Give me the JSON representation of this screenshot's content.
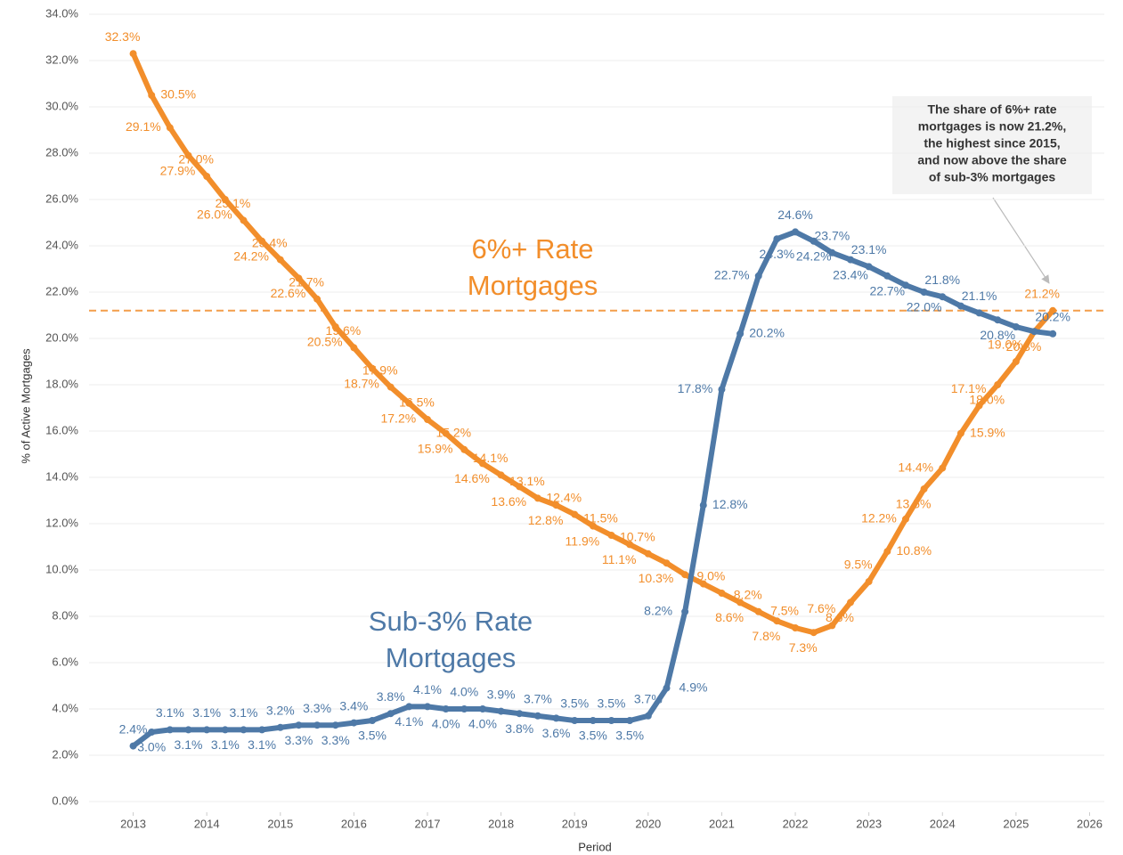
{
  "chart_data": {
    "type": "line",
    "y_label": "% of Active Mortgages",
    "x_label": "Period",
    "x": [
      2013,
      2013.25,
      2013.5,
      2013.75,
      2014,
      2014.25,
      2014.5,
      2014.75,
      2015,
      2015.25,
      2015.5,
      2015.75,
      2016,
      2016.25,
      2016.5,
      2016.75,
      2017,
      2017.25,
      2017.5,
      2017.75,
      2018,
      2018.25,
      2018.5,
      2018.75,
      2019,
      2019.25,
      2019.5,
      2019.75,
      2020,
      2020.25,
      2020.5,
      2020.75,
      2021,
      2021.25,
      2021.5,
      2021.75,
      2022,
      2022.25,
      2022.5,
      2022.75,
      2023,
      2023.25,
      2023.5,
      2023.75,
      2024,
      2024.25,
      2024.5,
      2024.75,
      2025,
      2025.25,
      2025.5
    ],
    "series": [
      {
        "name": "6%+ Rate Mortgages",
        "lines": [
          "6%+ Rate",
          "Mortgages"
        ],
        "color": "#f28e2b",
        "values": [
          32.3,
          30.5,
          29.1,
          27.9,
          27.0,
          26.0,
          25.1,
          24.2,
          23.4,
          22.6,
          21.7,
          20.5,
          19.6,
          18.7,
          17.9,
          17.2,
          16.5,
          15.9,
          15.2,
          14.6,
          14.1,
          13.6,
          13.1,
          12.8,
          12.4,
          11.9,
          11.5,
          11.1,
          10.7,
          10.3,
          9.8,
          9.4,
          9.0,
          8.6,
          8.2,
          7.8,
          7.5,
          7.3,
          7.6,
          8.6,
          9.5,
          10.8,
          12.2,
          13.5,
          14.4,
          15.9,
          17.1,
          18.0,
          19.0,
          20.3,
          21.2
        ],
        "value_labels": [
          "32.3%",
          "30.5%",
          "29.1%",
          "27.9%",
          "27.0%",
          "26.0%",
          "25.1%",
          "24.2%",
          "23.4%",
          "22.6%",
          "21.7%",
          "20.5%",
          "19.6%",
          "18.7%",
          "17.9%",
          "17.2%",
          "16.5%",
          "15.9%",
          "15.2%",
          "14.6%",
          "14.1%",
          "13.6%",
          "13.1%",
          "12.8%",
          "12.4%",
          "11.9%",
          "11.5%",
          "11.1%",
          "10.7%",
          "10.3%",
          null,
          null,
          "9.0%",
          "8.6%",
          "8.2%",
          "7.8%",
          "7.5%",
          "7.3%",
          "7.6%",
          "8.6%",
          "9.5%",
          "10.8%",
          "12.2%",
          "13.5%",
          "14.4%",
          "15.9%",
          "17.1%",
          "18.0%",
          "19.0%",
          "20.3%",
          "21.2%"
        ]
      },
      {
        "name": "Sub-3% Rate Mortgages",
        "lines": [
          "Sub-3% Rate",
          "Mortgages"
        ],
        "color": "#4e79a7",
        "values": [
          2.4,
          3.0,
          3.1,
          3.1,
          3.1,
          3.1,
          3.1,
          3.1,
          3.2,
          3.3,
          3.3,
          3.3,
          3.4,
          3.5,
          3.8,
          4.1,
          4.1,
          4.0,
          4.0,
          4.0,
          3.9,
          3.8,
          3.7,
          3.6,
          3.5,
          3.5,
          3.5,
          3.5,
          3.7,
          4.9,
          8.2,
          12.8,
          17.8,
          20.2,
          22.7,
          24.3,
          24.6,
          24.2,
          23.7,
          23.4,
          23.1,
          22.7,
          22.3,
          22.0,
          21.8,
          21.4,
          21.1,
          20.8,
          20.5,
          20.3,
          20.2
        ],
        "value_labels": [
          "2.4%",
          "3.0%",
          "3.1%",
          "3.1%",
          "3.1%",
          "3.1%",
          "3.1%",
          "3.1%",
          "3.2%",
          "3.3%",
          "3.3%",
          "3.3%",
          "3.4%",
          "3.5%",
          "3.8%",
          "4.1%",
          "4.1%",
          "4.0%",
          "4.0%",
          "4.0%",
          "3.9%",
          "3.8%",
          "3.7%",
          "3.6%",
          "3.5%",
          "3.5%",
          "3.5%",
          "3.5%",
          "3.7%",
          "4.9%",
          "8.2%",
          "12.8%",
          "17.8%",
          "20.2%",
          "22.7%",
          "24.3%",
          "24.6%",
          "24.2%",
          "23.7%",
          "23.4%",
          "23.1%",
          "22.7%",
          null,
          "22.0%",
          "21.8%",
          null,
          "21.1%",
          "20.8%",
          null,
          null,
          "20.2%"
        ]
      }
    ],
    "reference_line": 21.2,
    "annotation": {
      "lines": [
        "The share of 6%+ rate",
        "mortgages is now 21.2%,",
        "the highest since 2015,",
        "and now above the share",
        "of sub-3% mortgages"
      ]
    },
    "xlim": [
      2012.4,
      2026.2
    ],
    "xticks": [
      2013,
      2014,
      2015,
      2016,
      2017,
      2018,
      2019,
      2020,
      2021,
      2022,
      2023,
      2024,
      2025,
      2026
    ],
    "ylim": [
      -0.5,
      34.4
    ],
    "yticks": [
      {
        "value": 0,
        "label": "0.0%"
      },
      {
        "value": 2,
        "label": "2.0%"
      },
      {
        "value": 4,
        "label": "4.0%"
      },
      {
        "value": 6,
        "label": "6.0%"
      },
      {
        "value": 8,
        "label": "8.0%"
      },
      {
        "value": 10,
        "label": "10.0%"
      },
      {
        "value": 12,
        "label": "12.0%"
      },
      {
        "value": 14,
        "label": "14.0%"
      },
      {
        "value": 16,
        "label": "16.0%"
      },
      {
        "value": 18,
        "label": "18.0%"
      },
      {
        "value": 20,
        "label": "20.0%"
      },
      {
        "value": 22,
        "label": "22.0%"
      },
      {
        "value": 24,
        "label": "24.0%"
      },
      {
        "value": 26,
        "label": "26.0%"
      },
      {
        "value": 28,
        "label": "28.0%"
      },
      {
        "value": 30,
        "label": "30.0%"
      },
      {
        "value": 32,
        "label": "32.0%"
      },
      {
        "value": 34,
        "label": "34.0%"
      }
    ],
    "grid": true
  }
}
